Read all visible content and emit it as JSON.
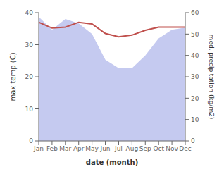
{
  "chart_data": {
    "type": "line",
    "categories": [
      "Jan",
      "Feb",
      "Mar",
      "Apr",
      "May",
      "Jun",
      "Jul",
      "Aug",
      "Sep",
      "Oct",
      "Nov",
      "Dec"
    ],
    "x_label": "date (month)",
    "y_label": "max temp (C)",
    "y2_label": "med. precipitation (kg/m2)",
    "series": [
      {
        "type": "area",
        "axis": "y2",
        "color": "#c5caf0",
        "values": [
          58,
          52,
          57,
          55,
          50,
          38,
          34,
          34,
          40,
          48,
          52,
          53
        ]
      },
      {
        "type": "line",
        "color": "#c0504d",
        "values": [
          37.0,
          35.2,
          35.5,
          37.0,
          36.5,
          33.5,
          32.5,
          33.0,
          34.5,
          35.5,
          35.5,
          35.5
        ]
      }
    ],
    "ylim": [
      0,
      40
    ],
    "yticks": [
      0,
      10,
      20,
      30,
      40
    ],
    "y2lim": [
      0,
      60
    ],
    "y2ticks": [
      0,
      10,
      20,
      30,
      40,
      50,
      60
    ],
    "grid": false
  }
}
